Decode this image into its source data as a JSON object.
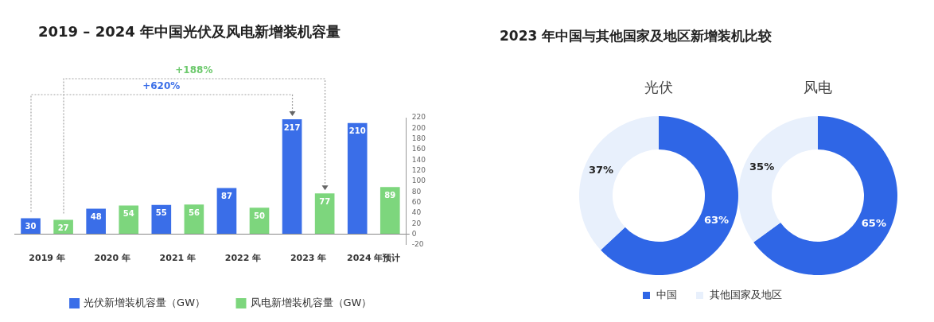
{
  "chart_data": [
    {
      "type": "bar",
      "title": "2019 – 2024 年中国光伏及风电新增装机容量",
      "categories": [
        "2019 年",
        "2020 年",
        "2021 年",
        "2022 年",
        "2023 年",
        "2024 年预计"
      ],
      "series": [
        {
          "name": "光伏新增装机容量（GW）",
          "color": "#3a6ee8",
          "values": [
            30,
            48,
            55,
            87,
            217,
            210
          ]
        },
        {
          "name": "风电新增装机容量（GW）",
          "color": "#7dd67d",
          "values": [
            27,
            54,
            56,
            50,
            77,
            89
          ]
        }
      ],
      "ylim": [
        -20,
        220
      ],
      "yticks": [
        -20,
        0,
        20,
        40,
        60,
        80,
        100,
        120,
        140,
        160,
        180,
        200,
        220
      ],
      "grid": false,
      "legend": "bottom",
      "data_labels": true,
      "annotations": [
        "+620%",
        "+188%"
      ]
    },
    {
      "type": "donut",
      "title": "2023 年中国与其他国家及地区新增装机比较",
      "subtitle": "光伏",
      "categories": [
        "中国",
        "其他国家及地区"
      ],
      "values": [
        63,
        37
      ],
      "colors": [
        "#2f66e6",
        "#e8f0fc"
      ],
      "value_labels": [
        "63%",
        "37%"
      ],
      "legend": "bottom"
    },
    {
      "type": "donut",
      "subtitle": "风电",
      "categories": [
        null,
        null
      ],
      "values": [
        65,
        35
      ],
      "colors": [
        "#2f66e6",
        "#e8f0fc"
      ],
      "value_labels": [
        "65%",
        "35%"
      ],
      "legend": false
    }
  ]
}
